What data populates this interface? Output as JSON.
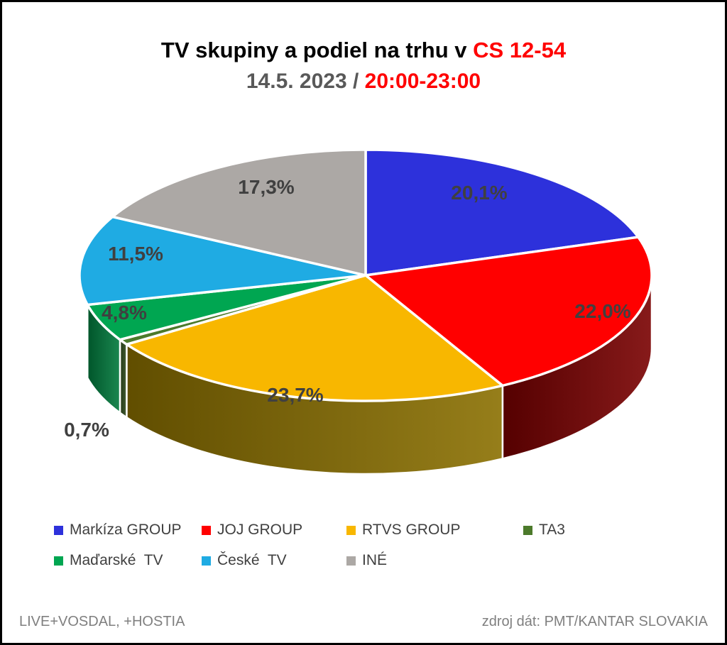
{
  "title": {
    "part_black": "TV skupiny a podiel na trhu v ",
    "part_red": "CS 12-54"
  },
  "subtitle": {
    "part_gray": "14.5. 2023 / ",
    "part_red": "20:00-23:00"
  },
  "chart_data": {
    "type": "pie",
    "style": "3d",
    "title": "TV skupiny a podiel na trhu v CS 12-54 14.5. 2023 / 20:00-23:00",
    "unit": "%",
    "start_angle_deg": 0,
    "direction": "clockwise",
    "legend_position": "bottom",
    "slices": [
      {
        "name": "Markíza GROUP",
        "value": 20.1,
        "label": "20,1%",
        "color": "#2d31db",
        "side_color": "#1a1d8a"
      },
      {
        "name": "JOJ GROUP",
        "value": 22.0,
        "label": "22,0%",
        "color": "#ff0000",
        "side_color": "#7a0000"
      },
      {
        "name": "RTVS GROUP",
        "value": 23.7,
        "label": "23,7%",
        "color": "#f8b700",
        "side_color": "#8a7000"
      },
      {
        "name": "TA3",
        "value": 0.7,
        "label": "0,7%",
        "color": "#4c7a2b",
        "side_color": "#2f4b1d"
      },
      {
        "name": "Maďarské  TV",
        "value": 4.8,
        "label": "4,8%",
        "color": "#00a651",
        "side_color": "#007a3c"
      },
      {
        "name": "České  TV",
        "value": 11.5,
        "label": "11,5%",
        "color": "#1fabe3",
        "side_color": "#14789f"
      },
      {
        "name": "INÉ",
        "value": 17.3,
        "label": "17,3%",
        "color": "#aca8a5",
        "side_color": "#7d7a77"
      }
    ],
    "label_color": "#404040"
  },
  "footer": {
    "left": "LIVE+VOSDAL, +HOSTIA",
    "right": "zdroj dát: PMT/KANTAR SLOVAKIA"
  }
}
